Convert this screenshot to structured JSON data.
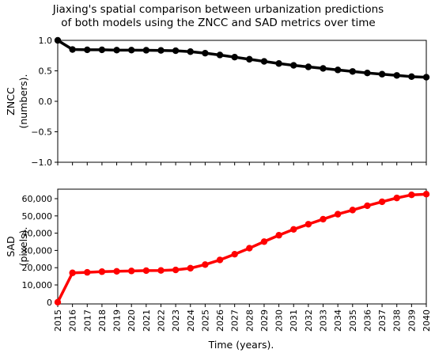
{
  "chart_data": {
    "title_lines": [
      "Jiaxing's spatial comparison between urbanization predictions",
      "of both models using the ZNCC and SAD metrics over time"
    ],
    "xlabel": "Time (years).",
    "x": [
      2015,
      2016,
      2017,
      2018,
      2019,
      2020,
      2021,
      2022,
      2023,
      2024,
      2025,
      2026,
      2027,
      2028,
      2029,
      2030,
      2031,
      2032,
      2033,
      2034,
      2035,
      2036,
      2037,
      2038,
      2039,
      2040
    ],
    "x_tick_labels": [
      "2015",
      "2016",
      "2017",
      "2018",
      "2019",
      "2020",
      "2021",
      "2022",
      "2023",
      "2024",
      "2025",
      "2026",
      "2027",
      "2028",
      "2029",
      "2030",
      "2031",
      "2032",
      "2033",
      "2034",
      "2035",
      "2036",
      "2037",
      "2038",
      "2039",
      "2040"
    ],
    "xlim": [
      2015,
      2040
    ],
    "subplots": [
      {
        "name": "zncc",
        "type": "line",
        "ylabel_lines": [
          "ZNCC",
          "(numbers)."
        ],
        "ylim": [
          -1.0,
          1.0
        ],
        "y_ticks": [
          -1.0,
          -0.5,
          0.0,
          0.5,
          1.0
        ],
        "y_tick_labels": [
          "−1.0",
          "−0.5",
          "0.0",
          "0.5",
          "1.0"
        ],
        "color": "#000000",
        "values": [
          1.0,
          0.85,
          0.845,
          0.845,
          0.84,
          0.84,
          0.838,
          0.835,
          0.83,
          0.815,
          0.79,
          0.76,
          0.725,
          0.69,
          0.655,
          0.62,
          0.59,
          0.565,
          0.54,
          0.515,
          0.49,
          0.465,
          0.445,
          0.425,
          0.405,
          0.395
        ]
      },
      {
        "name": "sad",
        "type": "line",
        "ylabel_lines": [
          "SAD",
          "(pixels)."
        ],
        "ylim": [
          -1000,
          65500
        ],
        "y_ticks": [
          0,
          10000,
          20000,
          30000,
          40000,
          50000,
          60000
        ],
        "y_tick_labels": [
          "0",
          "10,000",
          "20,000",
          "30,000",
          "40,000",
          "50,000",
          "60,000"
        ],
        "color": "#ff0000",
        "values": [
          0,
          17000,
          17300,
          17700,
          17900,
          18100,
          18300,
          18400,
          18700,
          19700,
          21800,
          24500,
          27800,
          31300,
          35100,
          38800,
          42200,
          45200,
          48100,
          51000,
          53400,
          55900,
          58200,
          60400,
          62200,
          62600
        ]
      }
    ]
  }
}
